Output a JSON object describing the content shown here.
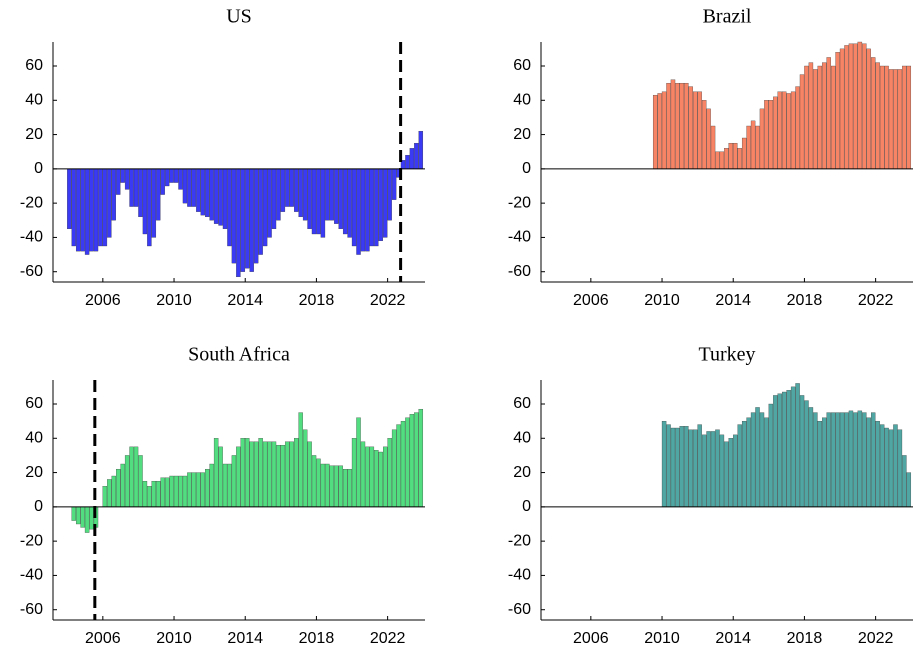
{
  "chart_data": [
    {
      "type": "bar",
      "title": "US",
      "color": "#3a3af5",
      "x": [
        2004,
        2004.25,
        2004.5,
        2004.75,
        2005,
        2005.25,
        2005.5,
        2005.75,
        2006,
        2006.25,
        2006.5,
        2006.75,
        2007,
        2007.25,
        2007.5,
        2007.75,
        2008,
        2008.25,
        2008.5,
        2008.75,
        2009,
        2009.25,
        2009.5,
        2009.75,
        2010,
        2010.25,
        2010.5,
        2010.75,
        2011,
        2011.25,
        2011.5,
        2011.75,
        2012,
        2012.25,
        2012.5,
        2012.75,
        2013,
        2013.25,
        2013.5,
        2013.75,
        2014,
        2014.25,
        2014.5,
        2014.75,
        2015,
        2015.25,
        2015.5,
        2015.75,
        2016,
        2016.25,
        2016.5,
        2016.75,
        2017,
        2017.25,
        2017.5,
        2017.75,
        2018,
        2018.25,
        2018.5,
        2018.75,
        2019,
        2019.25,
        2019.5,
        2019.75,
        2020,
        2020.25,
        2020.5,
        2020.75,
        2021,
        2021.25,
        2021.5,
        2021.75,
        2022,
        2022.25,
        2022.5,
        2022.75,
        2023,
        2023.25,
        2023.5,
        2023.75
      ],
      "values": [
        -35,
        -45,
        -48,
        -48,
        -50,
        -48,
        -48,
        -45,
        -45,
        -40,
        -30,
        -15,
        -8,
        -12,
        -22,
        -22,
        -28,
        -38,
        -45,
        -40,
        -30,
        -15,
        -10,
        -8,
        -8,
        -12,
        -20,
        -22,
        -22,
        -25,
        -27,
        -28,
        -30,
        -32,
        -33,
        -35,
        -45,
        -55,
        -63,
        -60,
        -58,
        -60,
        -55,
        -50,
        -45,
        -40,
        -35,
        -30,
        -25,
        -22,
        -22,
        -25,
        -28,
        -30,
        -35,
        -38,
        -38,
        -40,
        -30,
        -30,
        -32,
        -35,
        -38,
        -40,
        -45,
        -50,
        -48,
        -48,
        -45,
        -45,
        -42,
        -40,
        -30,
        -18,
        -5,
        5,
        8,
        12,
        15,
        22
      ],
      "vline": 2022.73,
      "xlim": [
        2003.2,
        2024.1
      ],
      "xticks": [
        2006,
        2010,
        2014,
        2018,
        2022
      ],
      "ylim": [
        -66,
        74
      ],
      "yticks": [
        -60,
        -40,
        -20,
        0,
        20,
        40,
        60
      ]
    },
    {
      "type": "bar",
      "title": "Brazil",
      "color": "#f88466",
      "x": [
        2004,
        2004.25,
        2004.5,
        2004.75,
        2005,
        2005.25,
        2005.5,
        2005.75,
        2006,
        2006.25,
        2006.5,
        2006.75,
        2007,
        2007.25,
        2007.5,
        2007.75,
        2008,
        2008.25,
        2008.5,
        2008.75,
        2009,
        2009.25,
        2009.5,
        2009.75,
        2010,
        2010.25,
        2010.5,
        2010.75,
        2011,
        2011.25,
        2011.5,
        2011.75,
        2012,
        2012.25,
        2012.5,
        2012.75,
        2013,
        2013.25,
        2013.5,
        2013.75,
        2014,
        2014.25,
        2014.5,
        2014.75,
        2015,
        2015.25,
        2015.5,
        2015.75,
        2016,
        2016.25,
        2016.5,
        2016.75,
        2017,
        2017.25,
        2017.5,
        2017.75,
        2018,
        2018.25,
        2018.5,
        2018.75,
        2019,
        2019.25,
        2019.5,
        2019.75,
        2020,
        2020.25,
        2020.5,
        2020.75,
        2021,
        2021.25,
        2021.5,
        2021.75,
        2022,
        2022.25,
        2022.5,
        2022.75,
        2023,
        2023.25,
        2023.5,
        2023.75
      ],
      "values": [
        null,
        null,
        null,
        null,
        null,
        null,
        null,
        null,
        null,
        null,
        null,
        null,
        null,
        null,
        null,
        null,
        null,
        null,
        null,
        null,
        null,
        null,
        43,
        44,
        45,
        50,
        52,
        50,
        50,
        50,
        48,
        45,
        45,
        40,
        35,
        25,
        10,
        10,
        12,
        15,
        15,
        12,
        18,
        25,
        28,
        25,
        35,
        40,
        40,
        42,
        45,
        45,
        44,
        45,
        48,
        55,
        60,
        62,
        58,
        60,
        62,
        65,
        60,
        68,
        70,
        72,
        73,
        73,
        74,
        73,
        70,
        65,
        62,
        60,
        60,
        58,
        58,
        58,
        60,
        60
      ],
      "xlim": [
        2003.2,
        2024.1
      ],
      "xticks": [
        2006,
        2010,
        2014,
        2018,
        2022
      ],
      "ylim": [
        -66,
        74
      ],
      "yticks": [
        -60,
        -40,
        -20,
        0,
        20,
        40,
        60
      ]
    },
    {
      "type": "bar",
      "title": "South Africa",
      "color": "#52de80",
      "x": [
        2004,
        2004.25,
        2004.5,
        2004.75,
        2005,
        2005.25,
        2005.5,
        2005.75,
        2006,
        2006.25,
        2006.5,
        2006.75,
        2007,
        2007.25,
        2007.5,
        2007.75,
        2008,
        2008.25,
        2008.5,
        2008.75,
        2009,
        2009.25,
        2009.5,
        2009.75,
        2010,
        2010.25,
        2010.5,
        2010.75,
        2011,
        2011.25,
        2011.5,
        2011.75,
        2012,
        2012.25,
        2012.5,
        2012.75,
        2013,
        2013.25,
        2013.5,
        2013.75,
        2014,
        2014.25,
        2014.5,
        2014.75,
        2015,
        2015.25,
        2015.5,
        2015.75,
        2016,
        2016.25,
        2016.5,
        2016.75,
        2017,
        2017.25,
        2017.5,
        2017.75,
        2018,
        2018.25,
        2018.5,
        2018.75,
        2019,
        2019.25,
        2019.5,
        2019.75,
        2020,
        2020.25,
        2020.5,
        2020.75,
        2021,
        2021.25,
        2021.5,
        2021.75,
        2022,
        2022.25,
        2022.5,
        2022.75,
        2023,
        2023.25,
        2023.5,
        2023.75
      ],
      "values": [
        null,
        -8,
        -10,
        -12,
        -15,
        -13,
        -12,
        null,
        12,
        16,
        18,
        22,
        25,
        30,
        35,
        35,
        30,
        15,
        12,
        15,
        15,
        17,
        17,
        18,
        18,
        18,
        18,
        20,
        20,
        20,
        20,
        22,
        25,
        40,
        35,
        25,
        25,
        30,
        35,
        40,
        40,
        38,
        38,
        40,
        38,
        38,
        38,
        36,
        36,
        38,
        38,
        40,
        55,
        45,
        38,
        30,
        28,
        25,
        25,
        24,
        24,
        24,
        22,
        22,
        40,
        52,
        38,
        35,
        35,
        33,
        32,
        35,
        40,
        45,
        48,
        50,
        52,
        54,
        55,
        57
      ],
      "vline": 2005.55,
      "xlim": [
        2003.2,
        2024.1
      ],
      "xticks": [
        2006,
        2010,
        2014,
        2018,
        2022
      ],
      "ylim": [
        -66,
        74
      ],
      "yticks": [
        -60,
        -40,
        -20,
        0,
        20,
        40,
        60
      ]
    },
    {
      "type": "bar",
      "title": "Turkey",
      "color": "#4fa6a2",
      "x": [
        2004,
        2004.25,
        2004.5,
        2004.75,
        2005,
        2005.25,
        2005.5,
        2005.75,
        2006,
        2006.25,
        2006.5,
        2006.75,
        2007,
        2007.25,
        2007.5,
        2007.75,
        2008,
        2008.25,
        2008.5,
        2008.75,
        2009,
        2009.25,
        2009.5,
        2009.75,
        2010,
        2010.25,
        2010.5,
        2010.75,
        2011,
        2011.25,
        2011.5,
        2011.75,
        2012,
        2012.25,
        2012.5,
        2012.75,
        2013,
        2013.25,
        2013.5,
        2013.75,
        2014,
        2014.25,
        2014.5,
        2014.75,
        2015,
        2015.25,
        2015.5,
        2015.75,
        2016,
        2016.25,
        2016.5,
        2016.75,
        2017,
        2017.25,
        2017.5,
        2017.75,
        2018,
        2018.25,
        2018.5,
        2018.75,
        2019,
        2019.25,
        2019.5,
        2019.75,
        2020,
        2020.25,
        2020.5,
        2020.75,
        2021,
        2021.25,
        2021.5,
        2021.75,
        2022,
        2022.25,
        2022.5,
        2022.75,
        2023,
        2023.25,
        2023.5,
        2023.75
      ],
      "values": [
        null,
        null,
        null,
        null,
        null,
        null,
        null,
        null,
        null,
        null,
        null,
        null,
        null,
        null,
        null,
        null,
        null,
        null,
        null,
        null,
        null,
        null,
        null,
        null,
        50,
        48,
        46,
        46,
        47,
        47,
        45,
        45,
        48,
        42,
        44,
        44,
        45,
        42,
        38,
        40,
        42,
        48,
        50,
        52,
        55,
        58,
        55,
        52,
        60,
        65,
        66,
        67,
        68,
        70,
        72,
        65,
        62,
        58,
        55,
        50,
        52,
        55,
        55,
        55,
        55,
        55,
        56,
        55,
        56,
        55,
        52,
        55,
        50,
        48,
        46,
        45,
        48,
        45,
        30,
        20
      ],
      "xlim": [
        2003.2,
        2024.1
      ],
      "xticks": [
        2006,
        2010,
        2014,
        2018,
        2022
      ],
      "ylim": [
        -66,
        74
      ],
      "yticks": [
        -60,
        -40,
        -20,
        0,
        20,
        40,
        60
      ]
    }
  ]
}
